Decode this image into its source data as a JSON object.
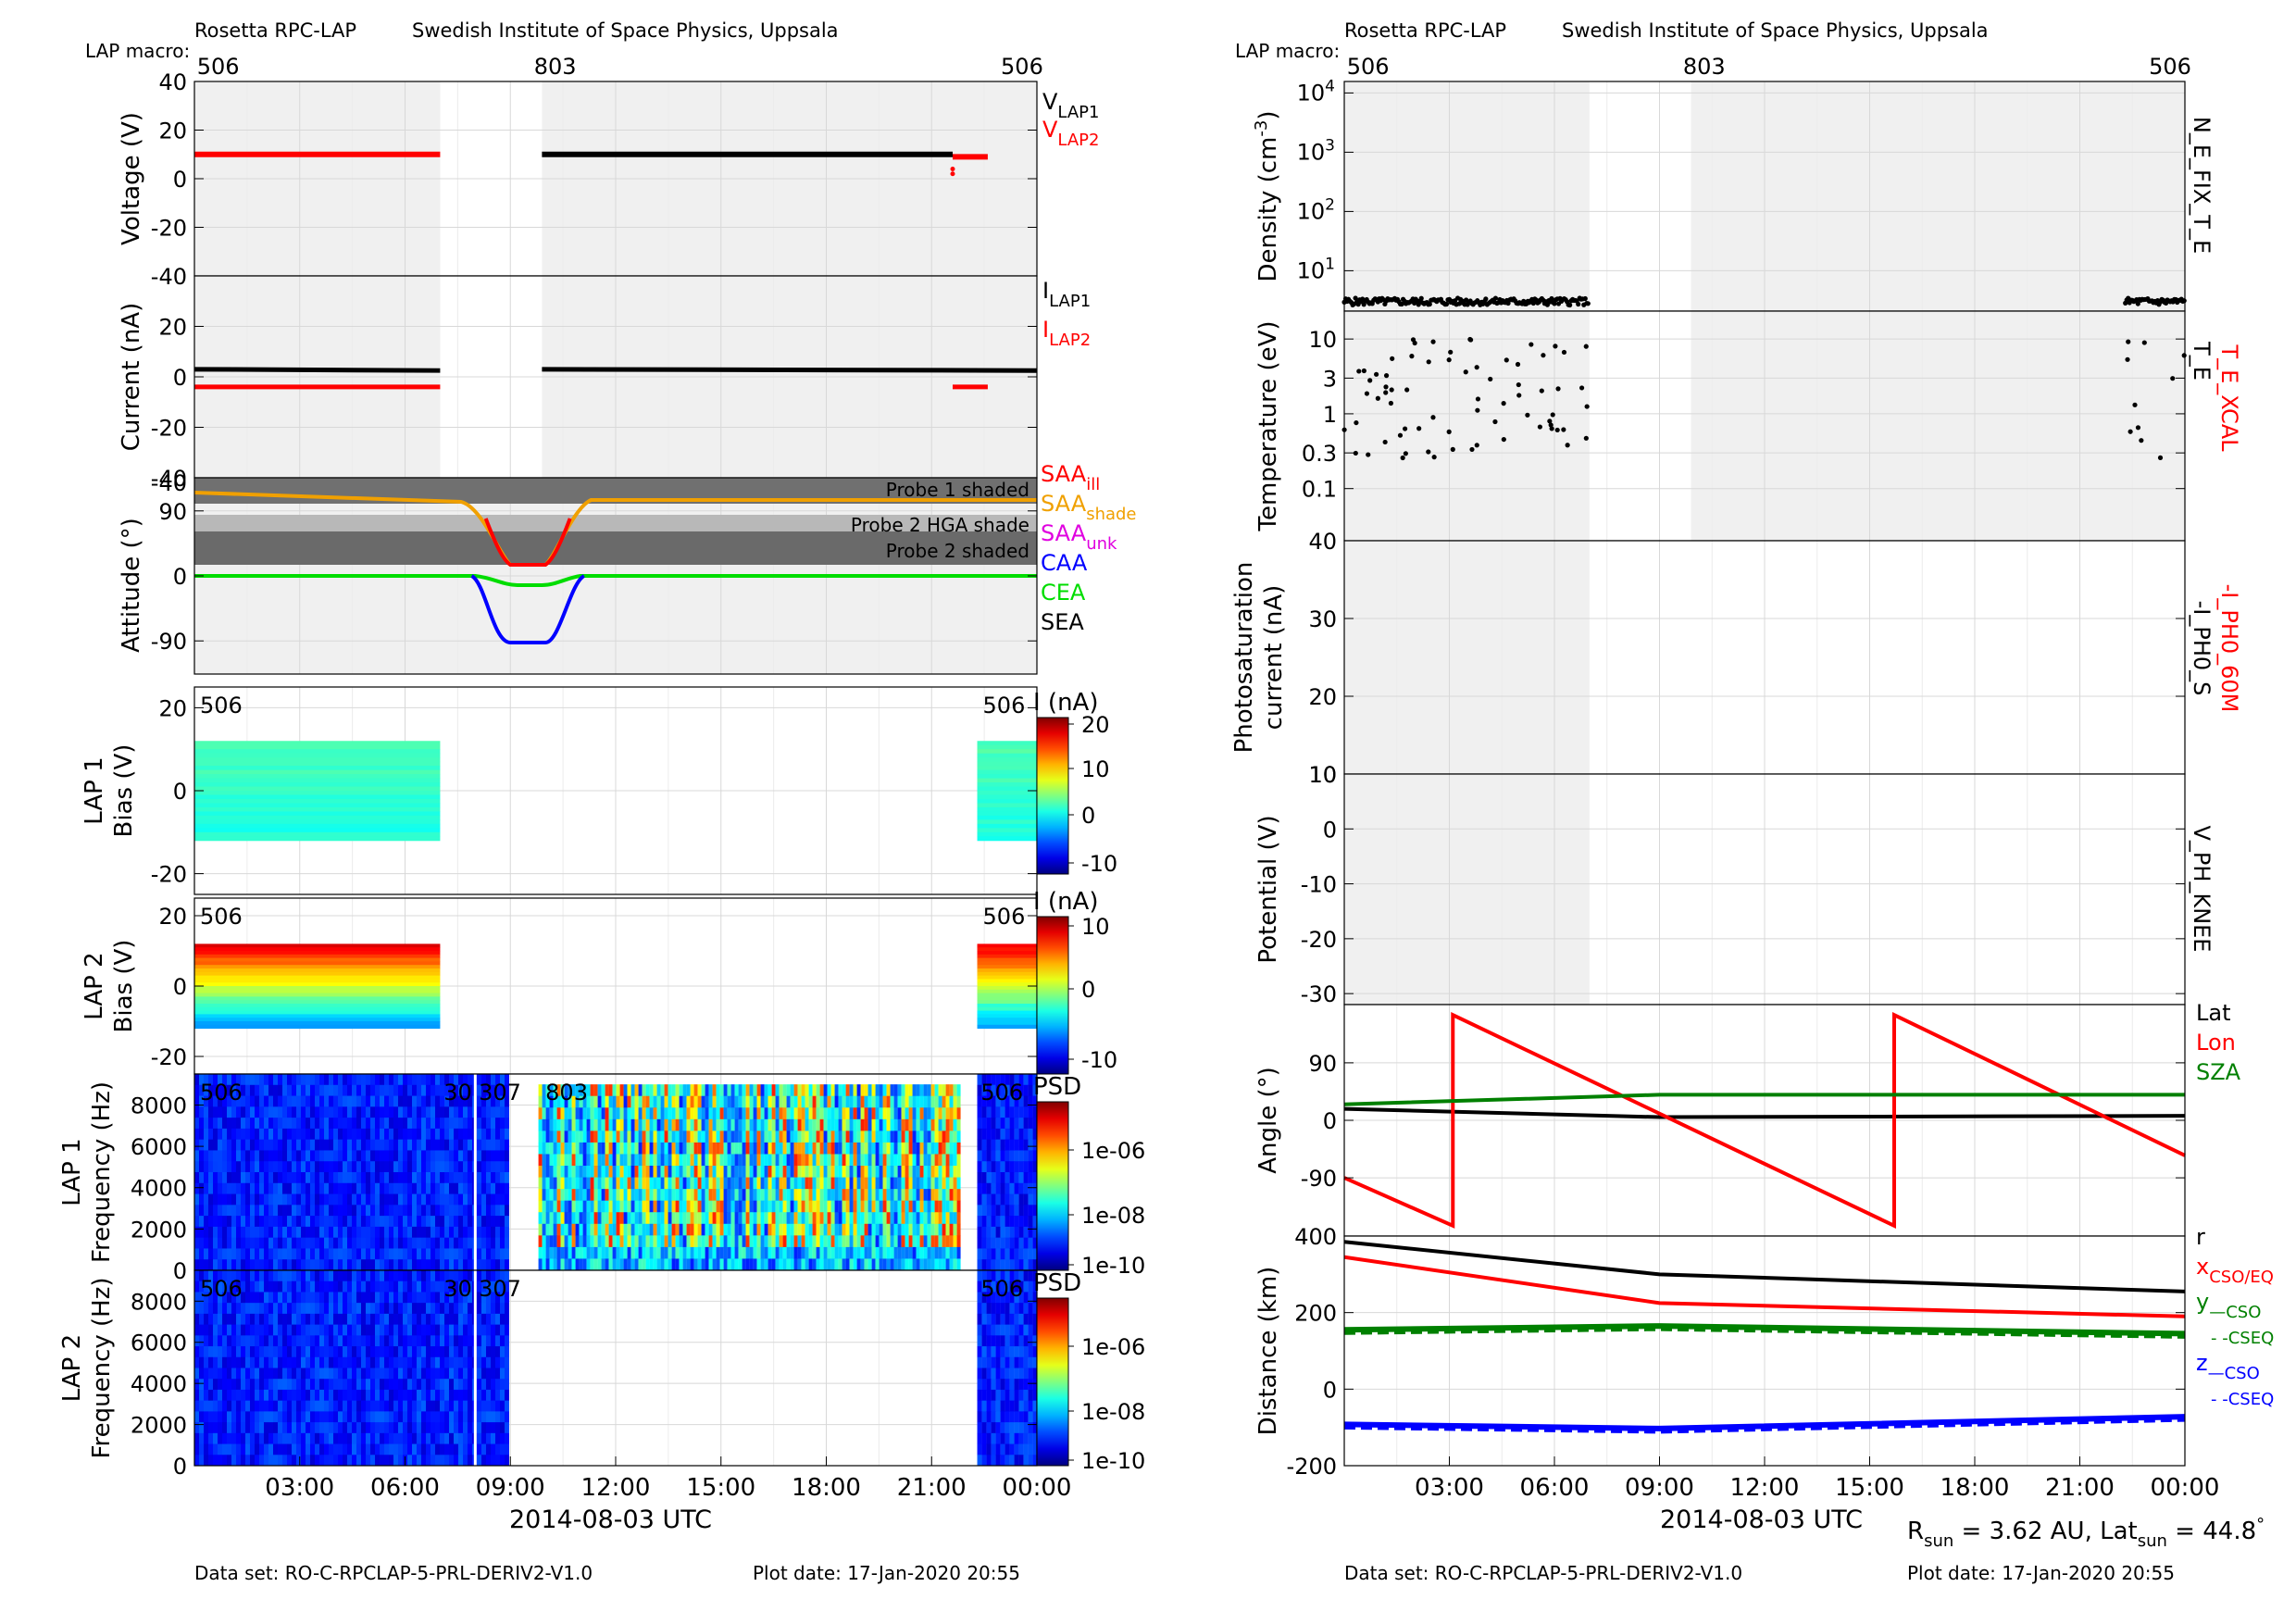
{
  "colors": {
    "black": "#000000",
    "red": "#ff0000",
    "orange": "#f0a000",
    "magenta": "#e000e0",
    "blue": "#0000ff",
    "green": "#00dd00",
    "darkgreen": "#008000",
    "shade": "#f0f0f0",
    "darkshade": "#606060",
    "midshade": "#a0a0a0",
    "grid": "#d8d8d8"
  },
  "left": {
    "header": {
      "instrument": "Rosetta RPC-LAP",
      "institute": "Swedish Institute of Space Physics, Uppsala",
      "macro_label": "LAP macro:"
    },
    "macros": [
      {
        "x": 0.6,
        "label": "506"
      },
      {
        "x": 10.2,
        "label": "803"
      },
      {
        "x": 23.5,
        "label": "506"
      }
    ],
    "xlabel": "2014-08-03 UTC",
    "xticks": [
      "03:00",
      "06:00",
      "09:00",
      "12:00",
      "15:00",
      "18:00",
      "21:00",
      "00:00"
    ],
    "footer": {
      "dataset": "Data set: RO-C-RPCLAP-5-PRL-DERIV2-V1.0",
      "plotdate": "Plot date: 17-Jan-2020 20:55"
    }
  },
  "right": {
    "header": {
      "instrument": "Rosetta RPC-LAP",
      "institute": "Swedish Institute of Space Physics, Uppsala",
      "macro_label": "LAP macro:"
    },
    "macros": [
      {
        "x": 0.6,
        "label": "506"
      },
      {
        "x": 10.2,
        "label": "803"
      },
      {
        "x": 23.5,
        "label": "506"
      }
    ],
    "xlabel": "2014-08-03 UTC",
    "xticks": [
      "03:00",
      "06:00",
      "09:00",
      "12:00",
      "15:00",
      "18:00",
      "21:00",
      "00:00"
    ],
    "footer": {
      "dataset": "Data set: RO-C-RPCLAP-5-PRL-DERIV2-V1.0",
      "plotdate": "Plot date: 17-Jan-2020 20:55"
    },
    "rsun_text": "R",
    "rsun_sub": "sun",
    "rsun_val": " = 3.62 AU, Lat",
    "lat_sub": "sun",
    "lat_val": " = 44.8",
    "deg": "°"
  },
  "chart_data": [
    {
      "type": "scatter",
      "panel": "Voltage",
      "ylabel": "Voltage (V)",
      "ylim": [
        -40,
        40
      ],
      "yticks": [
        "40",
        "20",
        "0",
        "-20",
        "-40"
      ],
      "xlim": [
        0,
        24
      ],
      "xunit": "hours UTC",
      "legend": [
        {
          "text": "V",
          "sub": "LAP1",
          "color": "#000000"
        },
        {
          "text": "V",
          "sub": "LAP2",
          "color": "#ff0000"
        }
      ],
      "series": [
        {
          "name": "VLAP2",
          "color": "#ff0000",
          "segments": [
            {
              "x": [
                0,
                7.0
              ],
              "y": [
                10,
                10
              ]
            },
            {
              "x": [
                21.6,
                22.6
              ],
              "y": [
                9,
                9
              ]
            }
          ]
        },
        {
          "name": "VLAP1",
          "color": "#000000",
          "segments": [
            {
              "x": [
                9.9,
                21.6
              ],
              "y": [
                10,
                10
              ]
            }
          ]
        }
      ]
    },
    {
      "type": "scatter",
      "panel": "Current",
      "ylabel": "Current (nA)",
      "ylim": [
        -40,
        40
      ],
      "yticks": [
        "20",
        "0",
        "-20",
        "-40"
      ],
      "legend": [
        {
          "text": "I",
          "sub": "LAP1",
          "color": "#000000"
        },
        {
          "text": "I",
          "sub": "LAP2",
          "color": "#ff0000"
        }
      ],
      "series": [
        {
          "name": "ILAP1",
          "color": "#000000",
          "segments": [
            {
              "x": [
                0,
                7.0
              ],
              "y": [
                3,
                2.5
              ]
            },
            {
              "x": [
                9.9,
                24
              ],
              "y": [
                3,
                2.5
              ]
            }
          ]
        },
        {
          "name": "ILAP2",
          "color": "#ff0000",
          "segments": [
            {
              "x": [
                0,
                7.0
              ],
              "y": [
                -4,
                -4
              ]
            },
            {
              "x": [
                21.6,
                22.6
              ],
              "y": [
                -4,
                -4
              ]
            }
          ]
        }
      ]
    },
    {
      "type": "line",
      "panel": "Attitude",
      "ylabel": "Attitude (°)",
      "yticks": [
        "90",
        "0",
        "-90"
      ],
      "bands": [
        "Probe 1 shaded",
        "Probe 2 HGA shade",
        "Probe 2 shaded"
      ],
      "legend": [
        {
          "text": "SAA",
          "sub": "ill",
          "color": "#ff0000"
        },
        {
          "text": "SAA",
          "sub": "shade",
          "color": "#f0a000"
        },
        {
          "text": "SAA",
          "sub": "unk",
          "color": "#e000e0"
        },
        {
          "text": "CAA",
          "sub": "",
          "color": "#0000ff"
        },
        {
          "text": "CEA",
          "sub": "",
          "color": "#00dd00"
        },
        {
          "text": "SEA",
          "sub": "",
          "color": "#000000"
        }
      ]
    },
    {
      "type": "heatmap",
      "panel": "LAP 1 sweep",
      "ylabel": "LAP 1",
      "ylabel2": "Bias (V)",
      "yticks": [
        "20",
        "0",
        "-20"
      ],
      "cbar_title": "I (nA)",
      "cbar_ticks": [
        "20",
        "10",
        "0",
        "-10"
      ],
      "labels": [
        "506",
        "506"
      ]
    },
    {
      "type": "heatmap",
      "panel": "LAP 2 sweep",
      "ylabel": "LAP 2",
      "ylabel2": "Bias (V)",
      "yticks": [
        "20",
        "0",
        "-20"
      ],
      "cbar_title": "I (nA)",
      "cbar_ticks": [
        "10",
        "0",
        "-10"
      ],
      "labels": [
        "506",
        "506"
      ]
    },
    {
      "type": "heatmap",
      "panel": "LAP 1 spectrogram",
      "ylabel": "LAP 1",
      "ylabel2": "Frequency (Hz)",
      "yticks": [
        "8000",
        "6000",
        "4000",
        "2000",
        "0"
      ],
      "cbar_title": "PSD",
      "cbar_ticks": [
        "1e-06",
        "1e-08",
        "1e-10"
      ],
      "labels": [
        "506",
        "30",
        "307",
        "803",
        "506"
      ]
    },
    {
      "type": "heatmap",
      "panel": "LAP 2 spectrogram",
      "ylabel": "LAP 2",
      "ylabel2": "Frequency (Hz)",
      "yticks": [
        "8000",
        "6000",
        "4000",
        "2000",
        "0"
      ],
      "cbar_title": "PSD",
      "cbar_ticks": [
        "1e-06",
        "1e-08",
        "1e-10"
      ],
      "labels": [
        "506",
        "30",
        "307",
        "506"
      ]
    },
    {
      "type": "scatter",
      "panel": "Density",
      "ylabel": "Density (cm",
      "ylabel_sup": "-3",
      "ylabel_end": ")",
      "yscale": "log",
      "yticks": [
        {
          "b": "10",
          "e": "4"
        },
        {
          "b": "10",
          "e": "3"
        },
        {
          "b": "10",
          "e": "2"
        },
        {
          "b": "10",
          "e": "1"
        }
      ],
      "right_label": "N_E_FIX_T_E",
      "series": [
        {
          "name": "N_E_FIX_T_E",
          "color": "#000000",
          "ranges": [
            [
              0,
              7.0
            ],
            [
              22.3,
              24
            ]
          ],
          "approx_value": 2.5
        }
      ]
    },
    {
      "type": "scatter",
      "panel": "Temperature",
      "ylabel": "Temperature (eV)",
      "yscale": "log",
      "yticks": [
        "10",
        "3",
        "1",
        "0.3",
        "0.1"
      ],
      "right_label": "T_E",
      "right_label2": "T_E_XCAL",
      "series": [
        {
          "name": "T_E",
          "color": "#000000",
          "ranges": [
            [
              0,
              7.0
            ],
            [
              22.3,
              24
            ]
          ],
          "approx_range": [
            0.25,
            12
          ]
        }
      ]
    },
    {
      "type": "line",
      "panel": "Photosaturation",
      "ylabel": "Photosaturation",
      "ylabel2": "current (nA)",
      "ylim": [
        10,
        40
      ],
      "yticks": [
        "40",
        "30",
        "20",
        "10"
      ],
      "right_label": "-I_PH0_S",
      "right_label2": "-I_PH0_60M"
    },
    {
      "type": "line",
      "panel": "Potential",
      "ylabel": "Potential (V)",
      "ylim": [
        -32,
        10
      ],
      "yticks": [
        "10",
        "0",
        "-10",
        "-20",
        "-30"
      ],
      "right_label": "V_PH_KNEE"
    },
    {
      "type": "line",
      "panel": "Angle",
      "ylabel": "Angle (°)",
      "ylim": [
        -180,
        180
      ],
      "yticks": [
        "90",
        "0",
        "-90"
      ],
      "legend": [
        {
          "text": "Lat",
          "sub": "",
          "color": "#000000"
        },
        {
          "text": "Lon",
          "sub": "",
          "color": "#ff0000"
        },
        {
          "text": "SZA",
          "sub": "",
          "color": "#008000"
        }
      ],
      "series": [
        {
          "name": "Lat",
          "color": "#000000",
          "x": [
            0,
            9,
            24
          ],
          "y": [
            18,
            5,
            7
          ]
        },
        {
          "name": "Lon",
          "color": "#ff0000",
          "x": [
            0,
            3.1,
            3.1,
            15.7,
            15.7,
            24
          ],
          "y": [
            -90,
            -165,
            165,
            -165,
            165,
            -55
          ]
        },
        {
          "name": "SZA",
          "color": "#008000",
          "x": [
            0,
            9,
            24
          ],
          "y": [
            25,
            40,
            40
          ]
        }
      ]
    },
    {
      "type": "line",
      "panel": "Distance",
      "ylabel": "Distance (km)",
      "ylim": [
        -200,
        400
      ],
      "yticks": [
        "400",
        "200",
        "0",
        "-200"
      ],
      "legend": [
        {
          "text": "r",
          "sub": "",
          "color": "#000000"
        },
        {
          "text": "x",
          "sub": "CSO/EQ",
          "color": "#ff0000"
        },
        {
          "text": "y",
          "sub": "—CSO",
          "color": "#008000"
        },
        {
          "text": "",
          "sub": "- -CSEQ",
          "color": "#008000"
        },
        {
          "text": "z",
          "sub": "—CSO",
          "color": "#0000ff"
        },
        {
          "text": "",
          "sub": "- -CSEQ",
          "color": "#0000ff"
        }
      ],
      "series": [
        {
          "name": "r",
          "color": "#000000",
          "x": [
            0,
            9,
            24
          ],
          "y": [
            385,
            300,
            255
          ]
        },
        {
          "name": "x",
          "color": "#ff0000",
          "x": [
            0,
            9,
            24
          ],
          "y": [
            345,
            225,
            190
          ]
        },
        {
          "name": "y",
          "color": "#008000",
          "x": [
            0,
            9,
            24
          ],
          "y": [
            155,
            165,
            145
          ]
        },
        {
          "name": "z",
          "color": "#0000ff",
          "x": [
            0,
            9,
            24
          ],
          "y": [
            -92,
            -103,
            -72
          ]
        }
      ]
    }
  ]
}
